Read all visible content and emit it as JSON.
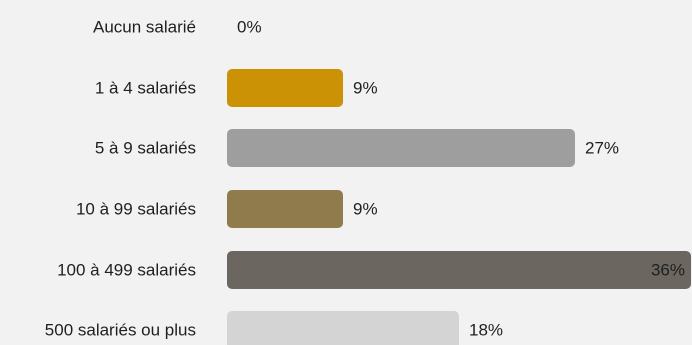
{
  "chart_data": {
    "type": "bar",
    "orientation": "horizontal",
    "categories": [
      "Aucun salarié",
      "1 à 4 salariés",
      "5 à 9 salariés",
      "10 à 99 salariés",
      "100 à 499 salariés",
      "500 salariés ou plus"
    ],
    "values": [
      0,
      9,
      27,
      9,
      36,
      18
    ],
    "value_labels": [
      "0%",
      "9%",
      "27%",
      "9%",
      "36%",
      "18%"
    ],
    "colors": [
      "#cc9206",
      "#cc9206",
      "#9e9e9e",
      "#8f7b4b",
      "#6b6760",
      "#d4d4d4"
    ],
    "xlim": [
      0,
      36
    ],
    "grid": false,
    "legend": "none"
  }
}
